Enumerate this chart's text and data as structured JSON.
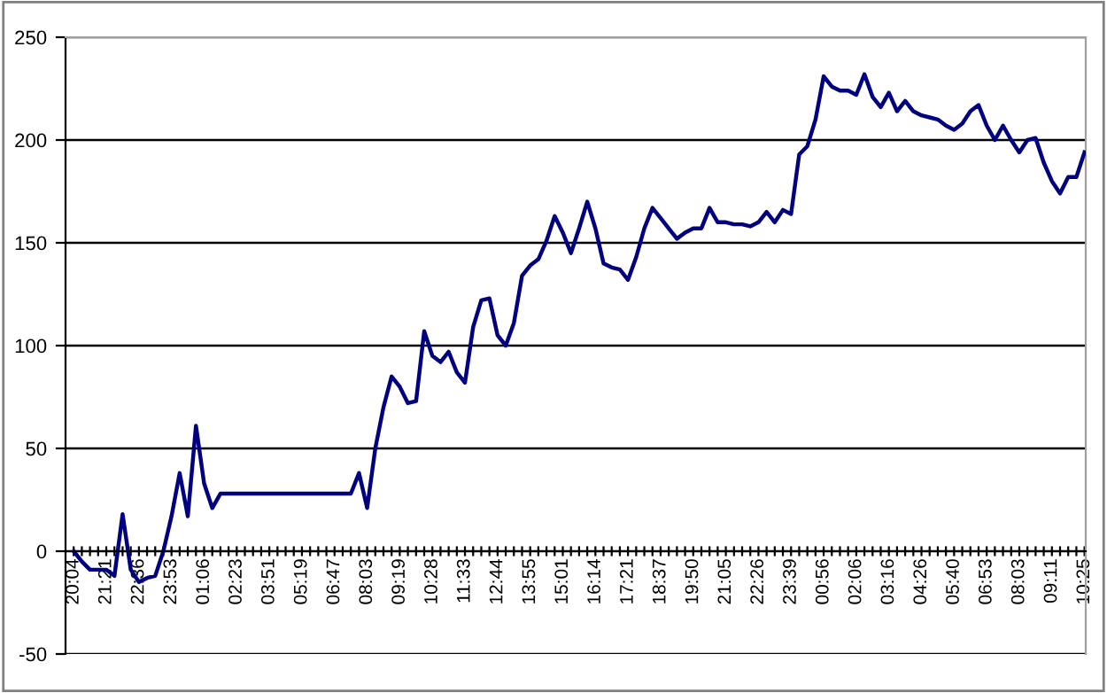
{
  "chart_data": {
    "type": "line",
    "categories": [
      "20:04",
      null,
      null,
      null,
      "21:21",
      null,
      null,
      null,
      "22:36",
      null,
      null,
      null,
      "23:53",
      null,
      null,
      null,
      "01:06",
      null,
      null,
      null,
      "02:23",
      null,
      null,
      null,
      "03:51",
      null,
      null,
      null,
      "05:19",
      null,
      null,
      null,
      "06:47",
      null,
      null,
      null,
      "08:03",
      null,
      null,
      null,
      "09:19",
      null,
      null,
      null,
      "10:28",
      null,
      null,
      null,
      "11:33",
      null,
      null,
      null,
      "12:44",
      null,
      null,
      null,
      "13:55",
      null,
      null,
      null,
      "15:01",
      null,
      null,
      null,
      "16:14",
      null,
      null,
      null,
      "17:21",
      null,
      null,
      null,
      "18:37",
      null,
      null,
      null,
      "19:50",
      null,
      null,
      null,
      "21:05",
      null,
      null,
      null,
      "22:26",
      null,
      null,
      null,
      "23:39",
      null,
      null,
      null,
      "00:56",
      null,
      null,
      null,
      "02:06",
      null,
      null,
      null,
      "03:16",
      null,
      null,
      null,
      "04:26",
      null,
      null,
      null,
      "05:40",
      null,
      null,
      null,
      "06:53",
      null,
      null,
      null,
      "08:03",
      null,
      null,
      null,
      "09:11",
      null,
      null,
      null,
      "10:25"
    ],
    "series": [
      {
        "color": "#000080",
        "values": [
          0,
          -5,
          -9,
          -9,
          -9,
          -12,
          18,
          -9,
          -15,
          -13,
          -12,
          0,
          17,
          38,
          17,
          61,
          33,
          21,
          28,
          28,
          28,
          28,
          28,
          28,
          28,
          28,
          28,
          28,
          28,
          28,
          28,
          28,
          28,
          28,
          28,
          38,
          21,
          50,
          70,
          85,
          80,
          72,
          73,
          107,
          95,
          92,
          97,
          87,
          82,
          109,
          122,
          123,
          105,
          100,
          111,
          134,
          139,
          142,
          151,
          163,
          155,
          145,
          157,
          170,
          157,
          140,
          138,
          137,
          132,
          143,
          157,
          167,
          162,
          157,
          152,
          155,
          157,
          157,
          167,
          160,
          160,
          159,
          159,
          158,
          160,
          165,
          160,
          166,
          164,
          193,
          197,
          210,
          231,
          226,
          224,
          224,
          222,
          232,
          221,
          216,
          223,
          214,
          219,
          214,
          212,
          211,
          210,
          207,
          205,
          208,
          214,
          217,
          207,
          200,
          207,
          200,
          194,
          200,
          201,
          189,
          180,
          174,
          182,
          182,
          194
        ]
      }
    ],
    "ylim": [
      -50,
      250
    ],
    "yticks": [
      -50,
      0,
      50,
      100,
      150,
      200,
      250
    ],
    "grid": "y",
    "marker": "none",
    "line_style": "solid"
  }
}
